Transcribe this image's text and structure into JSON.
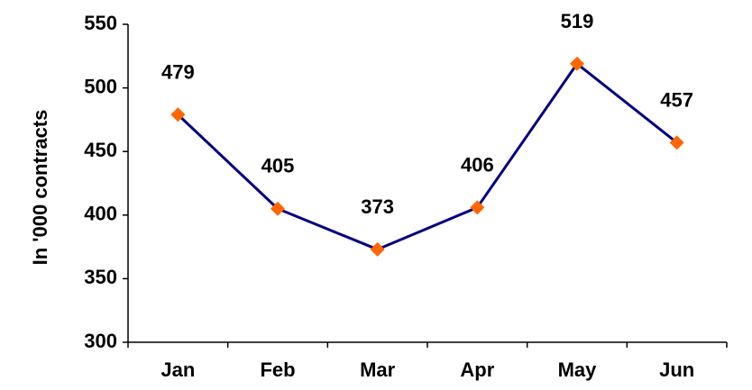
{
  "chart_data": {
    "type": "line",
    "title": "",
    "xlabel": "",
    "ylabel": "In '000 contracts",
    "categories": [
      "Jan",
      "Feb",
      "Mar",
      "Apr",
      "May",
      "Jun"
    ],
    "series": [
      {
        "values": [
          479,
          405,
          373,
          406,
          519,
          457
        ]
      }
    ],
    "ylim": [
      300,
      550
    ],
    "yticks": [
      300,
      350,
      400,
      450,
      500,
      550
    ],
    "grid": false,
    "legend": "none",
    "line_color": "#000080",
    "marker_color": "#FF6600",
    "marker_shape": "diamond",
    "data_labels": true
  }
}
